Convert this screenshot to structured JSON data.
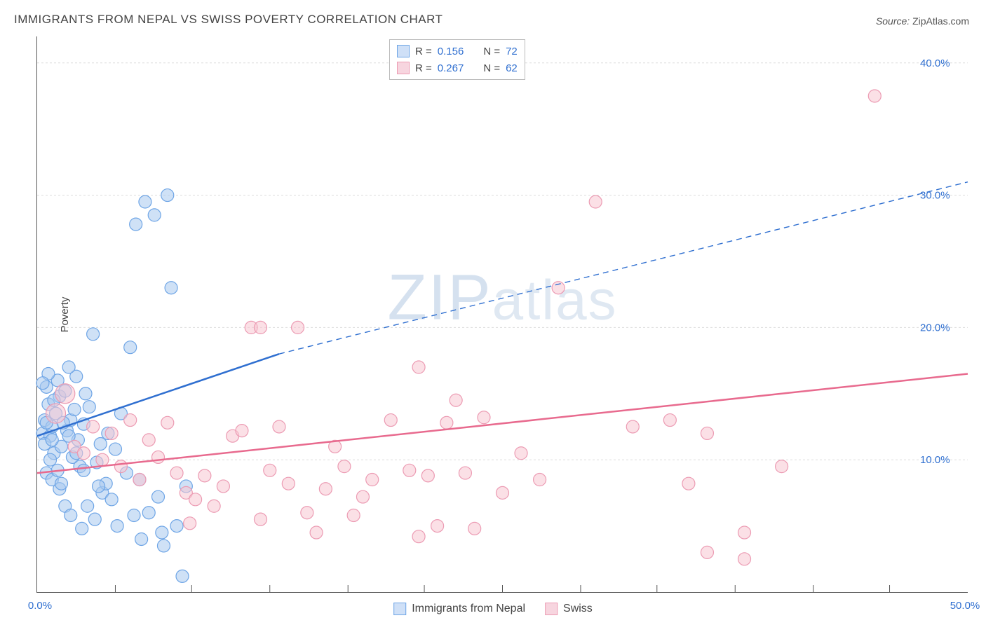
{
  "title": "IMMIGRANTS FROM NEPAL VS SWISS POVERTY CORRELATION CHART",
  "source_label": "Source:",
  "source_value": "ZipAtlas.com",
  "ylabel": "Poverty",
  "watermark": "ZIPatlas",
  "chart": {
    "type": "scatter",
    "xlim": [
      0,
      50
    ],
    "ylim": [
      0,
      42
    ],
    "x_ticks": [
      0,
      50
    ],
    "x_tick_labels": [
      "0.0%",
      "50.0%"
    ],
    "y_ticks": [
      10,
      20,
      30,
      40
    ],
    "y_tick_labels": [
      "10.0%",
      "20.0%",
      "30.0%",
      "40.0%"
    ],
    "x_minor_step": 50,
    "background_color": "#ffffff",
    "grid_color": "#dddddd",
    "axis_color": "#555555",
    "tick_label_color": "#2f6fd0",
    "point_radius": 9,
    "point_radius_large": 14,
    "series": [
      {
        "key": "nepal",
        "label": "Immigrants from Nepal",
        "R": 0.156,
        "N": 72,
        "color_fill": "#a8c8ef",
        "color_stroke": "#6ea5e6",
        "trend_color": "#2f6fd0",
        "trend": {
          "x1": 0,
          "y1": 11.8,
          "x2_solid": 13,
          "y2_solid": 18,
          "x2": 50,
          "y2": 31
        },
        "points": [
          [
            0.3,
            12
          ],
          [
            0.4,
            13
          ],
          [
            0.5,
            15.5
          ],
          [
            0.6,
            14.2
          ],
          [
            0.7,
            11.8
          ],
          [
            0.8,
            12.5
          ],
          [
            0.9,
            10.5
          ],
          [
            1,
            13.5
          ],
          [
            1.1,
            16
          ],
          [
            1.2,
            14.8
          ],
          [
            1.3,
            11
          ],
          [
            1.5,
            15.2
          ],
          [
            1.6,
            12.2
          ],
          [
            1.8,
            13
          ],
          [
            1.9,
            10.2
          ],
          [
            2,
            13.8
          ],
          [
            2.1,
            16.3
          ],
          [
            2.2,
            11.5
          ],
          [
            2.3,
            9.5
          ],
          [
            2.5,
            12.7
          ],
          [
            2.6,
            15
          ],
          [
            2.8,
            14
          ],
          [
            3,
            19.5
          ],
          [
            3.2,
            9.8
          ],
          [
            3.4,
            11.2
          ],
          [
            3.5,
            7.5
          ],
          [
            3.7,
            8.2
          ],
          [
            3.8,
            12
          ],
          [
            4,
            7
          ],
          [
            4.2,
            10.8
          ],
          [
            4.5,
            13.5
          ],
          [
            4.8,
            9
          ],
          [
            5,
            18.5
          ],
          [
            5.2,
            5.8
          ],
          [
            5.3,
            27.8
          ],
          [
            5.5,
            8.5
          ],
          [
            5.8,
            29.5
          ],
          [
            6,
            6
          ],
          [
            6.3,
            28.5
          ],
          [
            6.5,
            7.2
          ],
          [
            6.7,
            4.5
          ],
          [
            7,
            30
          ],
          [
            7.2,
            23
          ],
          [
            7.5,
            5
          ],
          [
            7.8,
            1.2
          ],
          [
            8,
            8
          ],
          [
            1.7,
            17
          ],
          [
            2.7,
            6.5
          ],
          [
            3.1,
            5.5
          ],
          [
            4.3,
            5
          ],
          [
            5.6,
            4
          ],
          [
            6.8,
            3.5
          ],
          [
            0.5,
            9
          ],
          [
            0.8,
            8.5
          ],
          [
            1.2,
            7.8
          ],
          [
            1.5,
            6.5
          ],
          [
            1.8,
            5.8
          ],
          [
            2.4,
            4.8
          ],
          [
            0.6,
            16.5
          ],
          [
            0.9,
            14.5
          ],
          [
            1.4,
            12.8
          ],
          [
            0.4,
            11.2
          ],
          [
            0.7,
            10
          ],
          [
            1.1,
            9.2
          ],
          [
            0.3,
            15.8
          ],
          [
            0.5,
            12.8
          ],
          [
            0.8,
            11.5
          ],
          [
            1.3,
            8.2
          ],
          [
            1.7,
            11.8
          ],
          [
            2.1,
            10.5
          ],
          [
            2.5,
            9.2
          ],
          [
            3.3,
            8
          ]
        ]
      },
      {
        "key": "swiss",
        "label": "Swiss",
        "R": 0.267,
        "N": 62,
        "color_fill": "#f7c6d2",
        "color_stroke": "#ec9bb3",
        "trend_color": "#e86a8e",
        "trend": {
          "x1": 0,
          "y1": 9,
          "x2": 50,
          "y2": 16.5
        },
        "points": [
          [
            1,
            13.5
          ],
          [
            1.5,
            15
          ],
          [
            2,
            11
          ],
          [
            2.5,
            10.5
          ],
          [
            3,
            12.5
          ],
          [
            3.5,
            10
          ],
          [
            4,
            12
          ],
          [
            4.5,
            9.5
          ],
          [
            5,
            13
          ],
          [
            5.5,
            8.5
          ],
          [
            6,
            11.5
          ],
          [
            6.5,
            10.2
          ],
          [
            7,
            12.8
          ],
          [
            7.5,
            9
          ],
          [
            8,
            7.5
          ],
          [
            8.5,
            7
          ],
          [
            9,
            8.8
          ],
          [
            9.5,
            6.5
          ],
          [
            10,
            8
          ],
          [
            10.5,
            11.8
          ],
          [
            11,
            12.2
          ],
          [
            11.5,
            20
          ],
          [
            12,
            5.5
          ],
          [
            12.5,
            9.2
          ],
          [
            13,
            12.5
          ],
          [
            13.5,
            8.2
          ],
          [
            14,
            20
          ],
          [
            14.5,
            6
          ],
          [
            15,
            4.5
          ],
          [
            15.5,
            7.8
          ],
          [
            16,
            11
          ],
          [
            16.5,
            9.5
          ],
          [
            17,
            5.8
          ],
          [
            17.5,
            7.2
          ],
          [
            18,
            8.5
          ],
          [
            19,
            13
          ],
          [
            20,
            9.2
          ],
          [
            20.5,
            17
          ],
          [
            21,
            8.8
          ],
          [
            21.5,
            5
          ],
          [
            22,
            12.8
          ],
          [
            22.5,
            14.5
          ],
          [
            23,
            9
          ],
          [
            23.5,
            4.8
          ],
          [
            24,
            13.2
          ],
          [
            25,
            7.5
          ],
          [
            26,
            10.5
          ],
          [
            27,
            8.5
          ],
          [
            28,
            23
          ],
          [
            30,
            29.5
          ],
          [
            32,
            12.5
          ],
          [
            34,
            13
          ],
          [
            35,
            8.2
          ],
          [
            36,
            3
          ],
          [
            38,
            2.5
          ],
          [
            40,
            9.5
          ],
          [
            36,
            12
          ],
          [
            38,
            4.5
          ],
          [
            20.5,
            4.2
          ],
          [
            8.2,
            5.2
          ],
          [
            12,
            20
          ],
          [
            45,
            37.5
          ]
        ]
      }
    ]
  },
  "minor_x_ticks": [
    4.2,
    8.3,
    12.5,
    16.7,
    20.8,
    25,
    29.2,
    33.3,
    37.5,
    41.7,
    45.8
  ]
}
